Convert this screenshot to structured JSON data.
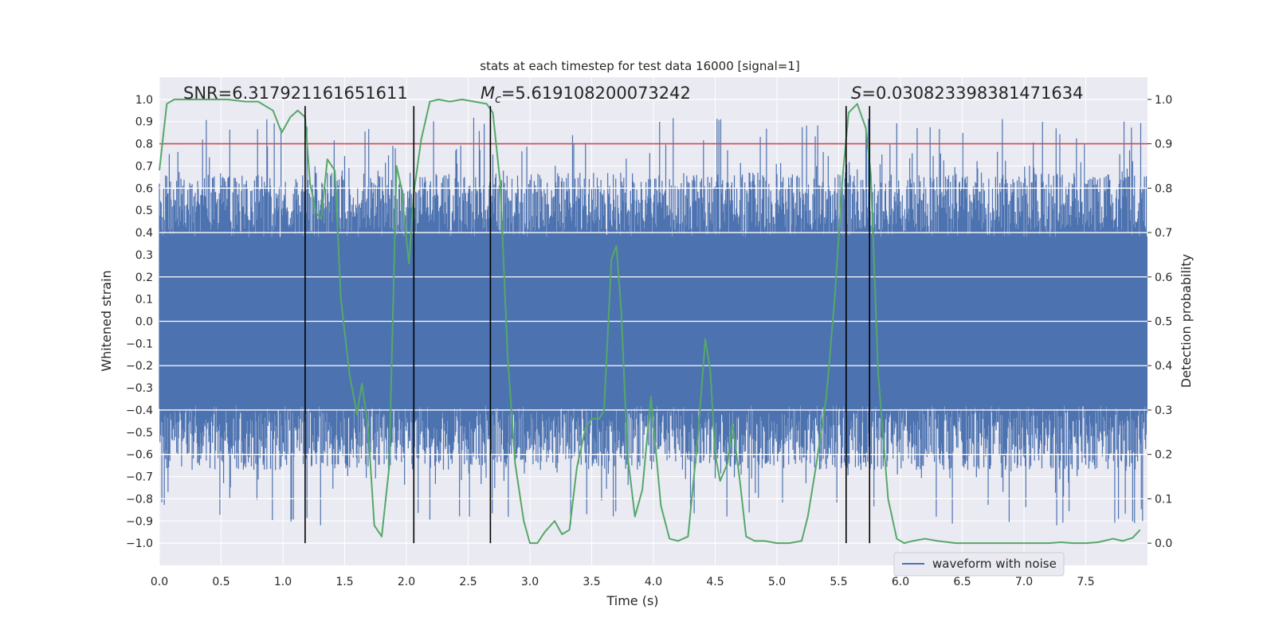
{
  "chart_data": {
    "type": "line",
    "title": "stats at each timestep for test data 16000 [signal=1]",
    "xlabel": "Time (s)",
    "ylabel": "Whitened strain",
    "y2label": "Detection probability",
    "xlim": [
      0,
      8
    ],
    "ylim": [
      -1.1,
      1.1
    ],
    "y2lim": [
      -0.05,
      1.05
    ],
    "xticks": [
      0,
      0.5,
      1,
      1.5,
      2,
      2.5,
      3,
      3.5,
      4,
      4.5,
      5,
      5.5,
      6,
      6.5,
      7,
      7.5
    ],
    "xtick_labels": [
      "0.0",
      "0.5",
      "1.0",
      "1.5",
      "2.0",
      "2.5",
      "3.0",
      "3.5",
      "4.0",
      "4.5",
      "5.0",
      "5.5",
      "6.0",
      "6.5",
      "7.0",
      "7.5"
    ],
    "yticks": [
      -1,
      -0.9,
      -0.8,
      -0.7,
      -0.6,
      -0.5,
      -0.4,
      -0.3,
      -0.2,
      -0.1,
      0,
      0.1,
      0.2,
      0.3,
      0.4,
      0.5,
      0.6,
      0.7,
      0.8,
      0.9,
      1
    ],
    "ytick_labels": [
      "−1.0",
      "−0.9",
      "−0.8",
      "−0.7",
      "−0.6",
      "−0.5",
      "−0.4",
      "−0.3",
      "−0.2",
      "−0.1",
      "0.0",
      "0.1",
      "0.2",
      "0.3",
      "0.4",
      "0.5",
      "0.6",
      "0.7",
      "0.8",
      "0.9",
      "1.0"
    ],
    "y2ticks": [
      0,
      0.1,
      0.2,
      0.3,
      0.4,
      0.5,
      0.6,
      0.7,
      0.8,
      0.9,
      1
    ],
    "y2tick_labels": [
      "0.0",
      "0.1",
      "0.2",
      "0.3",
      "0.4",
      "0.5",
      "0.6",
      "0.7",
      "0.8",
      "0.9",
      "1.0"
    ],
    "grid": true,
    "legend": {
      "position": "bottom-right",
      "entries": [
        "waveform with noise"
      ]
    },
    "annotations": {
      "snr": "SNR=6.317921161651611",
      "mc_symbol": "M",
      "mc_sub": "c",
      "mc_value": "=5.619108200073242",
      "s_symbol": "S",
      "s_value": "=0.030823398381471634"
    },
    "threshold": {
      "value": 0.9,
      "axis": "y2",
      "color": "#c44e52"
    },
    "vertical_lines": [
      1.18,
      2.06,
      2.68,
      5.56,
      5.75
    ],
    "waveform": {
      "name": "waveform with noise",
      "color": "#4c72b0",
      "sample_count": 1600,
      "core_amplitude": 0.38,
      "typical_peak_amplitude": 0.63,
      "max_amplitude": 0.97
    },
    "probability": {
      "name": "detection probability",
      "color": "#55a868",
      "x": [
        0,
        0.06,
        0.12,
        0.25,
        0.4,
        0.55,
        0.7,
        0.8,
        0.92,
        0.99,
        1.06,
        1.12,
        1.18,
        1.22,
        1.27,
        1.31,
        1.36,
        1.42,
        1.47,
        1.54,
        1.6,
        1.64,
        1.69,
        1.74,
        1.8,
        1.86,
        1.92,
        1.96,
        2.02,
        2.06,
        2.12,
        2.19,
        2.26,
        2.35,
        2.45,
        2.55,
        2.65,
        2.7,
        2.76,
        2.82,
        2.88,
        2.95,
        3.0,
        3.06,
        3.12,
        3.2,
        3.26,
        3.32,
        3.38,
        3.45,
        3.5,
        3.56,
        3.6,
        3.66,
        3.7,
        3.74,
        3.79,
        3.85,
        3.91,
        3.98,
        4.06,
        4.13,
        4.2,
        4.28,
        4.36,
        4.42,
        4.46,
        4.5,
        4.54,
        4.6,
        4.64,
        4.7,
        4.75,
        4.82,
        4.9,
        5.0,
        5.1,
        5.2,
        5.25,
        5.32,
        5.4,
        5.47,
        5.53,
        5.58,
        5.65,
        5.72,
        5.76,
        5.82,
        5.9,
        5.97,
        6.03,
        6.1,
        6.2,
        6.3,
        6.45,
        6.6,
        6.8,
        7.0,
        7.2,
        7.3,
        7.4,
        7.5,
        7.6,
        7.72,
        7.8,
        7.88,
        7.94
      ],
      "values": [
        0.84,
        0.99,
        1.0,
        1.0,
        1.0,
        1.0,
        0.995,
        0.995,
        0.975,
        0.925,
        0.96,
        0.975,
        0.96,
        0.81,
        0.745,
        0.73,
        0.865,
        0.84,
        0.55,
        0.38,
        0.29,
        0.36,
        0.26,
        0.04,
        0.015,
        0.17,
        0.85,
        0.8,
        0.63,
        0.79,
        0.91,
        0.995,
        1.0,
        0.995,
        1.0,
        0.995,
        0.99,
        0.97,
        0.81,
        0.42,
        0.18,
        0.05,
        0.0,
        0.0,
        0.025,
        0.05,
        0.02,
        0.03,
        0.17,
        0.26,
        0.28,
        0.28,
        0.3,
        0.64,
        0.67,
        0.52,
        0.2,
        0.06,
        0.12,
        0.33,
        0.085,
        0.01,
        0.005,
        0.015,
        0.24,
        0.46,
        0.39,
        0.2,
        0.14,
        0.18,
        0.27,
        0.14,
        0.015,
        0.005,
        0.005,
        0.0,
        0.0,
        0.005,
        0.06,
        0.18,
        0.33,
        0.56,
        0.82,
        0.97,
        0.99,
        0.935,
        0.83,
        0.38,
        0.1,
        0.01,
        0.0,
        0.005,
        0.01,
        0.005,
        0.0,
        0.0,
        0.0,
        0.0,
        0.0,
        0.002,
        0.0,
        0.0,
        0.002,
        0.01,
        0.005,
        0.012,
        0.03
      ]
    }
  }
}
